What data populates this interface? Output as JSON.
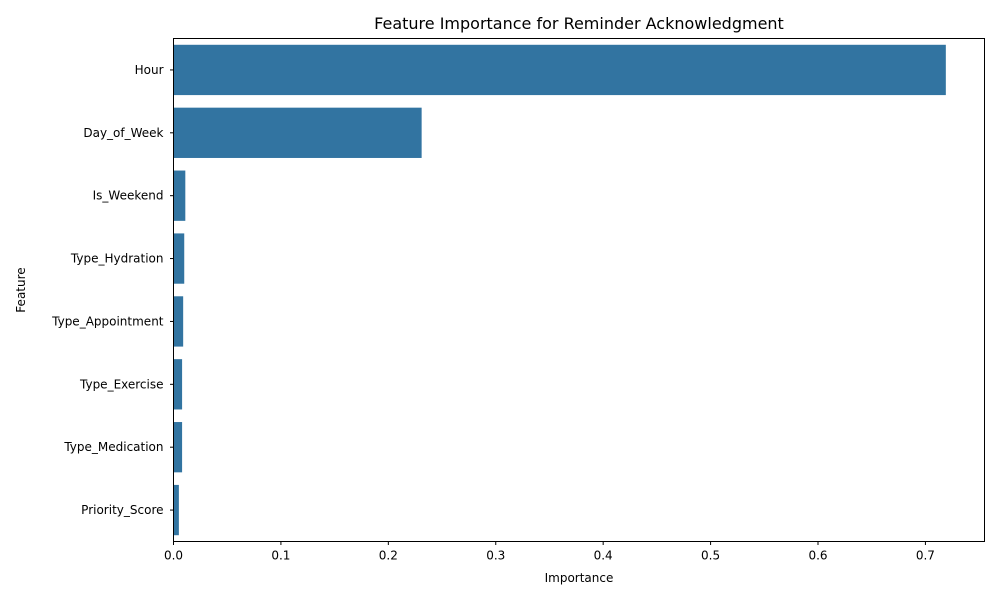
{
  "chart_data": {
    "type": "bar",
    "orientation": "horizontal",
    "title": "Feature Importance for Reminder Acknowledgment",
    "xlabel": "Importance",
    "ylabel": "Feature",
    "xlim": [
      0,
      0.755
    ],
    "xticks": [
      0.0,
      0.1,
      0.2,
      0.3,
      0.4,
      0.5,
      0.6,
      0.7
    ],
    "xtick_labels": [
      "0.0",
      "0.1",
      "0.2",
      "0.3",
      "0.4",
      "0.5",
      "0.6",
      "0.7"
    ],
    "grid": false,
    "bar_color": "#3274a1",
    "categories": [
      "Hour",
      "Day_of_Week",
      "Is_Weekend",
      "Type_Hydration",
      "Type_Appointment",
      "Type_Exercise",
      "Type_Medication",
      "Priority_Score"
    ],
    "values": [
      0.719,
      0.231,
      0.011,
      0.01,
      0.009,
      0.008,
      0.008,
      0.005
    ]
  }
}
